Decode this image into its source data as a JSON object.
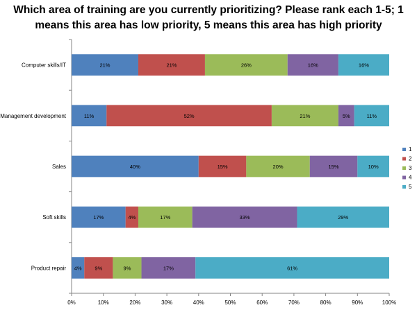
{
  "chart_data": {
    "type": "bar",
    "orientation": "horizontal",
    "stacked": "percent",
    "title_lines": [
      "Which area of training are you currently prioritizing? Please rank each 1-5; 1",
      "means this area has low priority, 5 means this area has high priority"
    ],
    "categories": [
      "Computer skills/IT",
      "Management development",
      "Sales",
      "Soft skills",
      "Product repair"
    ],
    "series": [
      {
        "name": "1",
        "color": "#4F81BD",
        "values": [
          21,
          11,
          40,
          17,
          4
        ]
      },
      {
        "name": "2",
        "color": "#C0504D",
        "values": [
          21,
          52,
          15,
          4,
          9
        ]
      },
      {
        "name": "3",
        "color": "#9BBB59",
        "values": [
          26,
          21,
          20,
          17,
          9
        ]
      },
      {
        "name": "4",
        "color": "#8064A2",
        "values": [
          16,
          5,
          15,
          33,
          17
        ]
      },
      {
        "name": "5",
        "color": "#4BACC6",
        "values": [
          16,
          11,
          10,
          29,
          61
        ]
      }
    ],
    "xlim": [
      0,
      100
    ],
    "x_ticks": [
      "0%",
      "10%",
      "20%",
      "30%",
      "40%",
      "50%",
      "60%",
      "70%",
      "80%",
      "90%",
      "100%"
    ],
    "legend_position": "right",
    "grid": false
  }
}
